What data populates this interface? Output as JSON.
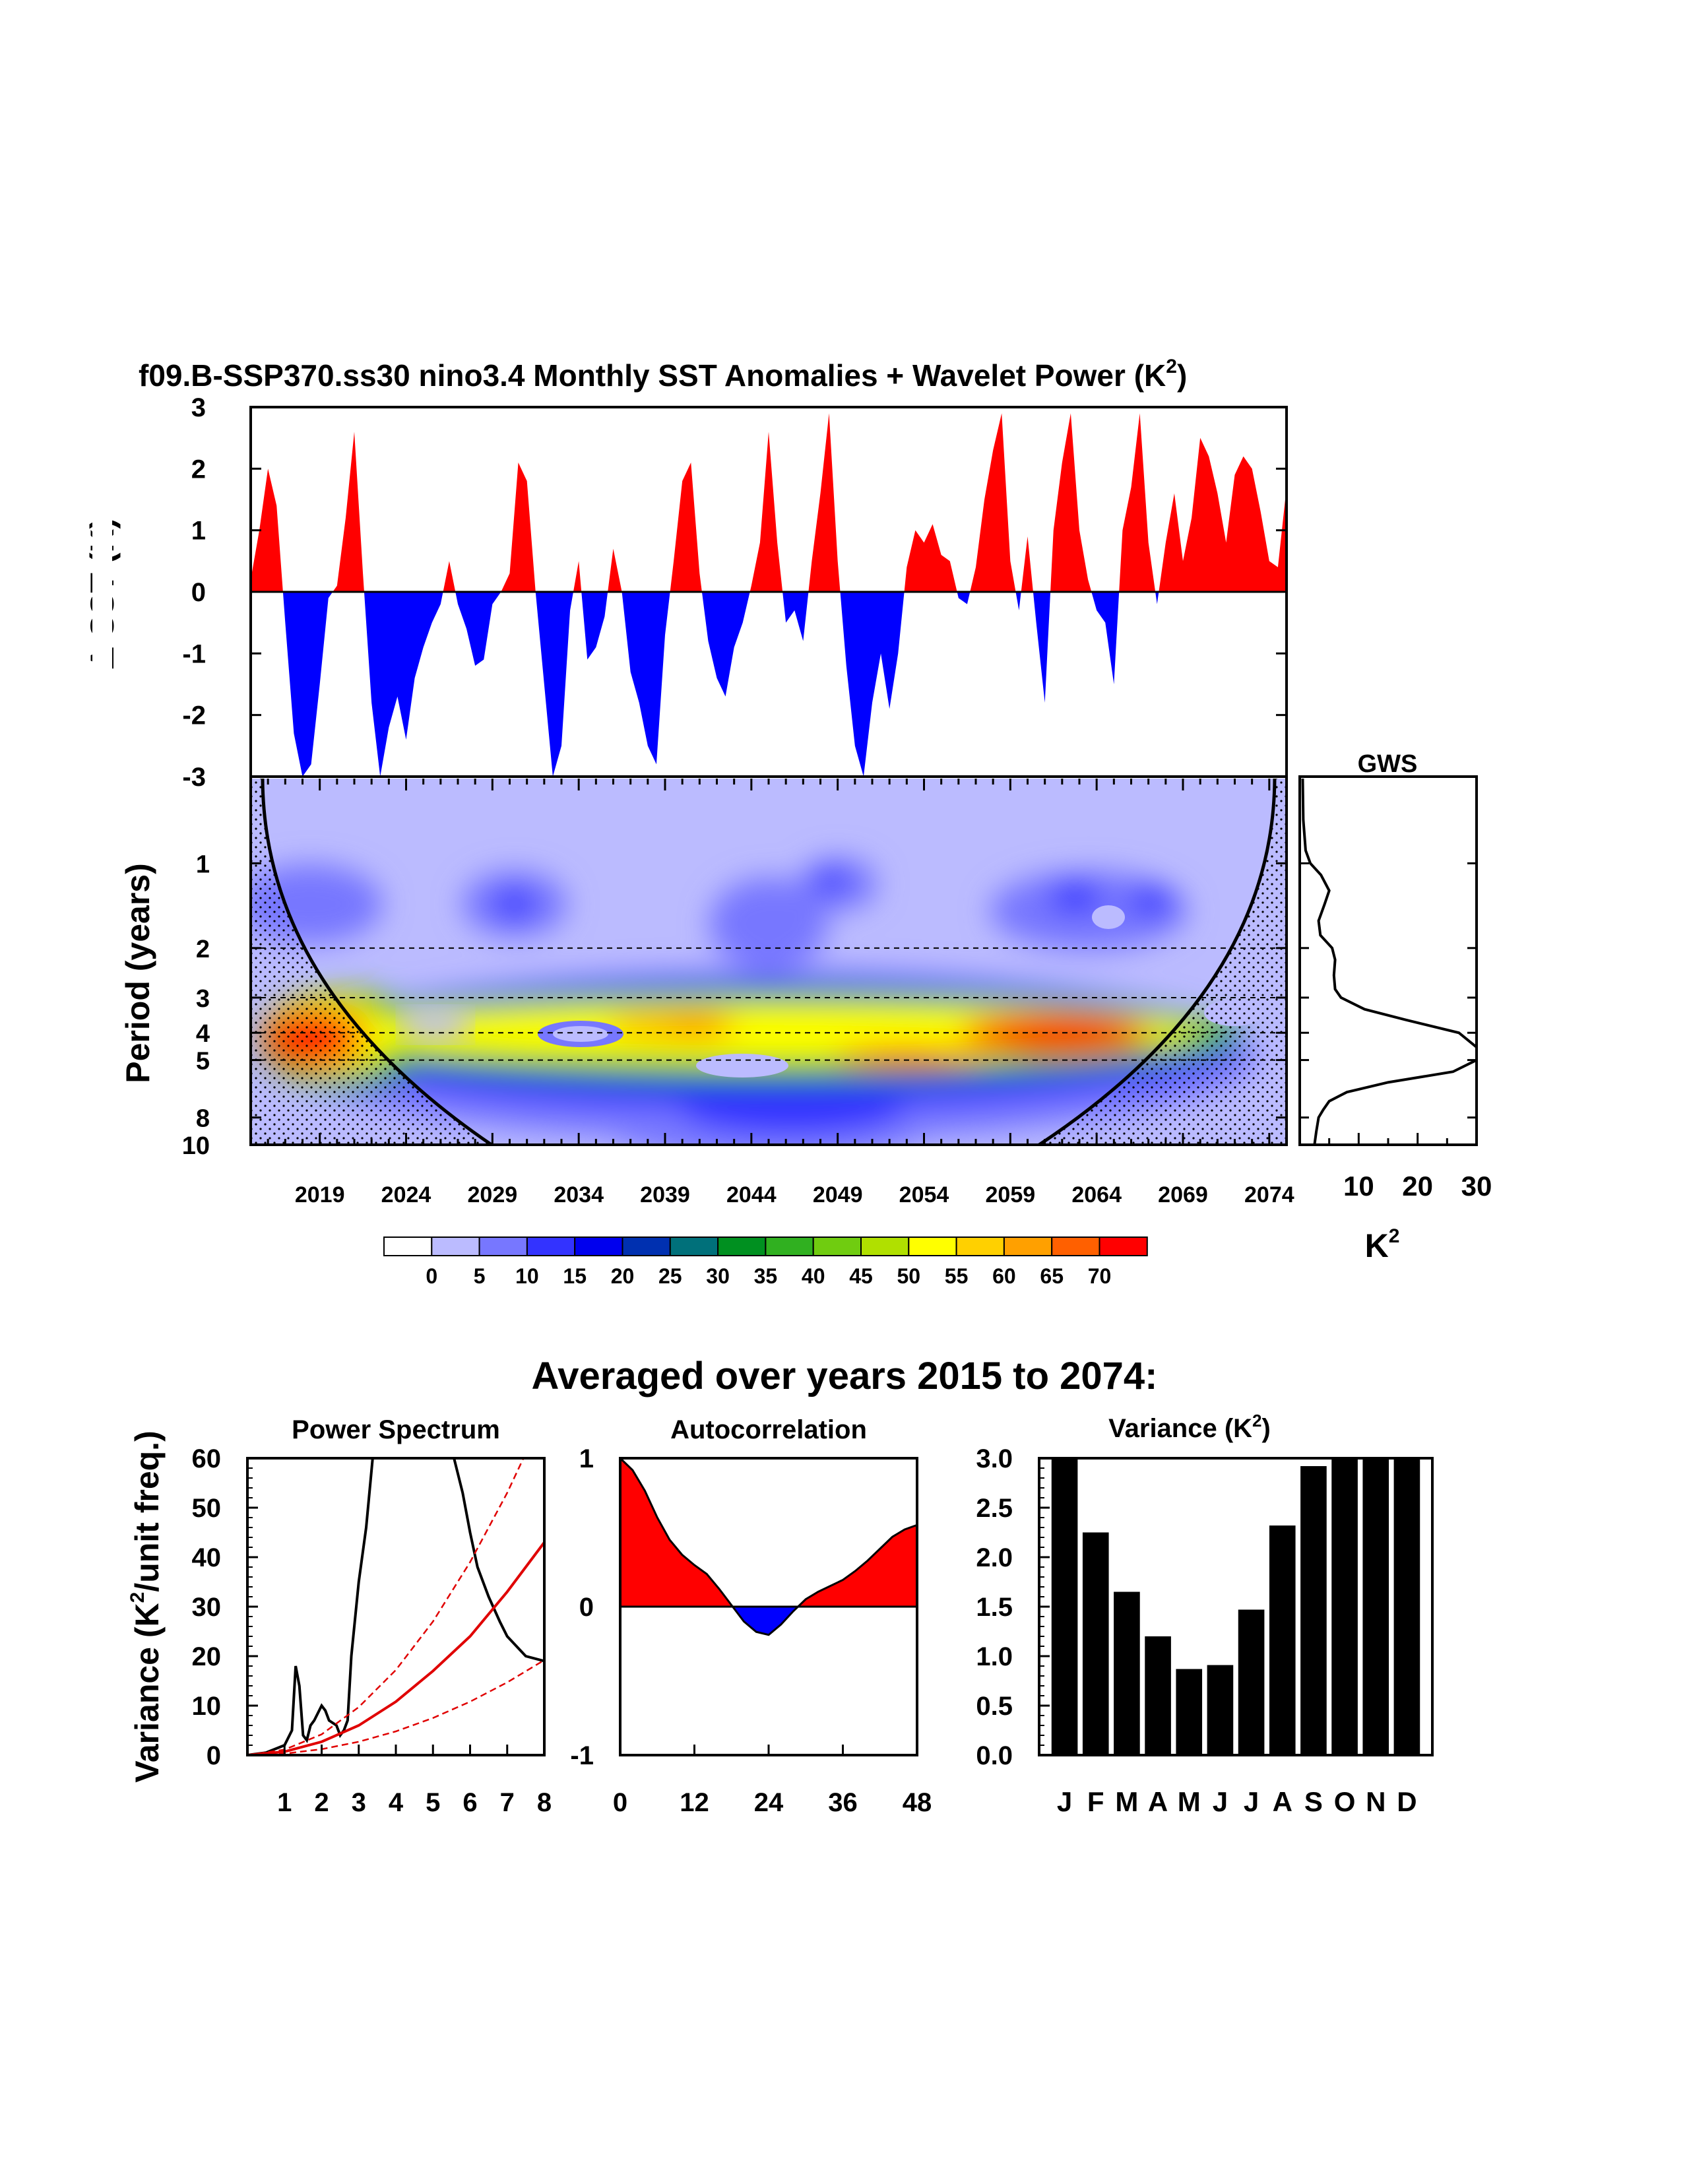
{
  "colors": {
    "positive": "#ff0000",
    "negative": "#0000ff",
    "bar": "#000000",
    "red_noise": "#e00000",
    "wavelet_levels": [
      "#ffffff",
      "#bbbbff",
      "#7777ff",
      "#3333ff",
      "#0000ee",
      "#0030b0",
      "#00707a",
      "#009020",
      "#30b020",
      "#70cc10",
      "#b0e000",
      "#ffff00",
      "#ffd000",
      "#ffa000",
      "#ff6000",
      "#ff0000"
    ]
  },
  "chart_data": [
    {
      "type": "area",
      "panel": "sst_anomalies",
      "title": "f09.B-SSP370.ss30 nino3.4 Monthly SST Anomalies + Wavelet Power (K",
      "title_sup": "2",
      "title_end": ")",
      "ylabel": "Δ SST (K)",
      "ylim": [
        -3,
        3
      ],
      "yticks": [
        "3",
        "2",
        "1",
        "0",
        "-1",
        "-2",
        "-3"
      ],
      "xlim": [
        2015,
        2075
      ],
      "x": [
        2015.0,
        2015.5,
        2016.0,
        2016.5,
        2017.0,
        2017.5,
        2018.0,
        2018.5,
        2019.0,
        2019.5,
        2020.0,
        2020.5,
        2021.0,
        2021.5,
        2022.0,
        2022.5,
        2023.0,
        2023.5,
        2024.0,
        2024.5,
        2025.0,
        2025.5,
        2026.0,
        2026.5,
        2027.0,
        2027.5,
        2028.0,
        2028.5,
        2029.0,
        2029.5,
        2030.0,
        2030.5,
        2031.0,
        2031.5,
        2032.0,
        2032.5,
        2033.0,
        2033.5,
        2034.0,
        2034.5,
        2035.0,
        2035.5,
        2036.0,
        2036.5,
        2037.0,
        2037.5,
        2038.0,
        2038.5,
        2039.0,
        2039.5,
        2040.0,
        2040.5,
        2041.0,
        2041.5,
        2042.0,
        2042.5,
        2043.0,
        2043.5,
        2044.0,
        2044.5,
        2045.0,
        2045.5,
        2046.0,
        2046.5,
        2047.0,
        2047.5,
        2048.0,
        2048.5,
        2049.0,
        2049.5,
        2050.0,
        2050.5,
        2051.0,
        2051.5,
        2052.0,
        2052.5,
        2053.0,
        2053.5,
        2054.0,
        2054.5,
        2055.0,
        2055.5,
        2056.0,
        2056.5,
        2057.0,
        2057.5,
        2058.0,
        2058.5,
        2059.0,
        2059.5,
        2060.0,
        2060.5,
        2061.0,
        2061.5,
        2062.0,
        2062.5,
        2063.0,
        2063.5,
        2064.0,
        2064.5,
        2065.0,
        2065.5,
        2066.0,
        2066.5,
        2067.0,
        2067.5,
        2068.0,
        2068.5,
        2069.0,
        2069.5,
        2070.0,
        2070.5,
        2071.0,
        2071.5,
        2072.0,
        2072.5,
        2073.0,
        2073.5,
        2074.0,
        2074.5,
        2075.0
      ],
      "y": [
        0.2,
        1.0,
        2.0,
        1.4,
        -0.5,
        -2.3,
        -3.0,
        -2.8,
        -1.5,
        -0.1,
        0.1,
        1.2,
        2.6,
        0.3,
        -1.8,
        -3.0,
        -2.2,
        -1.7,
        -2.4,
        -1.4,
        -0.9,
        -0.5,
        -0.2,
        0.5,
        -0.2,
        -0.6,
        -1.2,
        -1.1,
        -0.2,
        0.0,
        0.3,
        2.1,
        1.8,
        0.0,
        -1.5,
        -3.0,
        -2.5,
        -0.3,
        0.5,
        -1.1,
        -0.9,
        -0.4,
        0.7,
        0.0,
        -1.3,
        -1.8,
        -2.5,
        -2.8,
        -0.7,
        0.5,
        1.8,
        2.1,
        0.3,
        -0.8,
        -1.4,
        -1.7,
        -0.9,
        -0.5,
        0.1,
        0.8,
        2.6,
        0.8,
        -0.5,
        -0.3,
        -0.8,
        0.5,
        1.6,
        2.9,
        0.5,
        -1.2,
        -2.5,
        -3.0,
        -1.8,
        -1.0,
        -1.9,
        -1.0,
        0.4,
        1.0,
        0.8,
        1.1,
        0.6,
        0.5,
        -0.1,
        -0.2,
        0.4,
        1.5,
        2.3,
        2.9,
        0.5,
        -0.3,
        0.9,
        -0.5,
        -1.8,
        1.0,
        2.1,
        2.9,
        1.0,
        0.2,
        -0.3,
        -0.5,
        -1.5,
        1.0,
        1.7,
        2.9,
        0.8,
        -0.2,
        0.8,
        1.6,
        0.5,
        1.2,
        2.5,
        2.2,
        1.6,
        0.8,
        1.9,
        2.2,
        2.0,
        1.3,
        0.5,
        0.4,
        1.7
      ]
    },
    {
      "type": "heatmap",
      "panel": "wavelet_power",
      "ylabel": "Period (years)",
      "yticks": [
        "1",
        "2",
        "3",
        "4",
        "5",
        "8",
        "10"
      ],
      "xticks": [
        "2019",
        "2024",
        "2029",
        "2034",
        "2039",
        "2044",
        "2049",
        "2054",
        "2059",
        "2064",
        "2069",
        "2074"
      ],
      "dashed_periods": [
        2,
        3,
        4,
        5
      ],
      "levels": [
        "0",
        "5",
        "10",
        "15",
        "20",
        "25",
        "30",
        "35",
        "40",
        "45",
        "50",
        "55",
        "60",
        "65",
        "70"
      ]
    },
    {
      "type": "line",
      "panel": "gws",
      "title": "GWS",
      "xlabel": "K",
      "xlabel_sup": "2",
      "xticks": [
        "10",
        "20",
        "30"
      ],
      "xlim": [
        0,
        30
      ],
      "period": [
        0.5,
        0.7,
        0.9,
        1.0,
        1.1,
        1.25,
        1.4,
        1.6,
        1.8,
        2.0,
        2.2,
        2.5,
        2.8,
        3.0,
        3.3,
        3.6,
        4.0,
        4.5,
        5.0,
        5.5,
        6.0,
        6.5,
        7.0,
        7.5,
        8.0,
        9.0,
        10.0
      ],
      "power": [
        0.5,
        0.6,
        1.0,
        1.8,
        3.6,
        5.0,
        4.2,
        3.2,
        3.5,
        5.5,
        6.0,
        5.8,
        6.0,
        7.0,
        11.0,
        18.0,
        27.0,
        30.0,
        30.0,
        26.0,
        15.0,
        8.0,
        5.0,
        4.0,
        3.2,
        2.8,
        2.5
      ]
    },
    {
      "type": "line",
      "panel": "power_spectrum",
      "title": "Power Spectrum",
      "ylabel": "Variance (K",
      "ylabel_sup": "2",
      "ylabel_end": "/unit freq.)",
      "xlim": [
        0,
        8
      ],
      "ylim": [
        0,
        60
      ],
      "xticks": [
        "1",
        "2",
        "3",
        "4",
        "5",
        "6",
        "7",
        "8"
      ],
      "yticks": [
        "0",
        "10",
        "20",
        "30",
        "40",
        "50",
        "60"
      ],
      "series": [
        {
          "x": [
            0,
            0.5,
            1.0,
            1.2,
            1.3,
            1.4,
            1.5,
            1.6,
            1.7,
            1.8,
            2.0,
            2.1,
            2.2,
            2.4,
            2.5,
            2.6,
            2.7,
            2.8,
            3.0,
            3.2,
            3.4,
            5.5,
            5.8,
            6.0,
            6.2,
            6.5,
            6.8,
            7.0,
            7.5,
            8.0
          ],
          "y": [
            0,
            0.5,
            2,
            5,
            18,
            14,
            4,
            3,
            6,
            7,
            10,
            9,
            7,
            6,
            4,
            5,
            7,
            20,
            35,
            46,
            62,
            62,
            53,
            45,
            38,
            32,
            27,
            24,
            20,
            19
          ]
        },
        {
          "x": [
            0,
            1,
            2,
            3,
            4,
            5,
            6,
            7,
            8
          ],
          "y": [
            0,
            0.7,
            2.7,
            6.0,
            10.8,
            17,
            24,
            33,
            43
          ]
        },
        {
          "x": [
            0,
            1,
            2,
            3,
            4,
            5,
            6,
            7,
            8
          ],
          "y": [
            0,
            1.1,
            4.2,
            9.7,
            17.2,
            27,
            39,
            53,
            69
          ]
        },
        {
          "x": [
            0,
            1,
            2,
            3,
            4,
            5,
            6,
            7,
            8
          ],
          "y": [
            0,
            0.3,
            1.2,
            2.7,
            4.8,
            7.5,
            10.8,
            14.7,
            19.2
          ]
        }
      ]
    },
    {
      "type": "area",
      "panel": "autocorrelation",
      "title": "Autocorrelation",
      "xlim": [
        0,
        48
      ],
      "ylim": [
        -1,
        1
      ],
      "xticks": [
        "0",
        "12",
        "24",
        "36",
        "48"
      ],
      "yticks": [
        "1",
        "0",
        "-1"
      ],
      "x": [
        0,
        2,
        4,
        6,
        8,
        10,
        12,
        14,
        16,
        18,
        20,
        22,
        24,
        26,
        28,
        30,
        32,
        34,
        36,
        38,
        40,
        42,
        44,
        46,
        48
      ],
      "y": [
        1.0,
        0.92,
        0.78,
        0.6,
        0.45,
        0.35,
        0.28,
        0.22,
        0.12,
        0.01,
        -0.1,
        -0.17,
        -0.19,
        -0.12,
        -0.03,
        0.05,
        0.1,
        0.14,
        0.18,
        0.24,
        0.31,
        0.39,
        0.47,
        0.52,
        0.55
      ]
    },
    {
      "type": "bar",
      "panel": "monthly_variance",
      "title": "Variance (K",
      "title_sup": "2",
      "title_end": ")",
      "ylim": [
        0,
        3
      ],
      "yticks": [
        "0.0",
        "0.5",
        "1.0",
        "1.5",
        "2.0",
        "2.5",
        "3.0"
      ],
      "categories": [
        "J",
        "F",
        "M",
        "A",
        "M",
        "J",
        "J",
        "A",
        "S",
        "O",
        "N",
        "D"
      ],
      "values": [
        3.0,
        2.25,
        1.65,
        1.2,
        0.87,
        0.91,
        1.47,
        2.32,
        2.92,
        3.0,
        3.0,
        3.0
      ]
    }
  ],
  "section_title": "Averaged over years 2015 to 2074:"
}
